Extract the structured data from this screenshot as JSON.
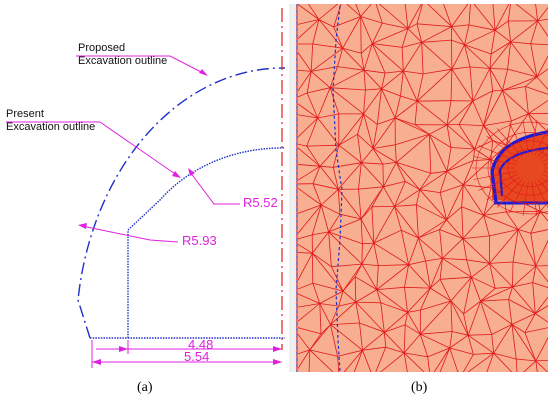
{
  "panel_a": {
    "proposed_label_line1": "Proposed",
    "proposed_label_line2": "Excavation outline",
    "present_label_line1": "Present",
    "present_label_line2": "Excavation outline",
    "radius_present": "R5.52",
    "radius_proposed": "R5.93",
    "width_present": "4.48",
    "width_proposed": "5.54",
    "caption": "(a)"
  },
  "panel_b": {
    "caption": "(b)"
  },
  "colors": {
    "outline_blue": "#2030c8",
    "dimension_magenta": "#e020e0",
    "centerline_red": "#e02020",
    "mesh_fill": "#f8ae90",
    "mesh_line": "#e01818",
    "tunnel_blue": "#1a1ad8"
  }
}
